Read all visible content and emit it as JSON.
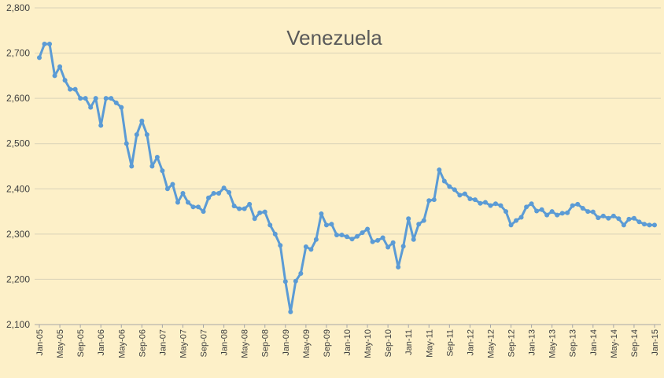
{
  "chart_data": {
    "type": "line",
    "title": "Venezuela",
    "xlabel": "",
    "ylabel": "",
    "ylim": [
      2100,
      2800
    ],
    "yticks": [
      "2,100",
      "2,200",
      "2,300",
      "2,400",
      "2,500",
      "2,600",
      "2,700",
      "2,800"
    ],
    "grid": true,
    "legend": "none",
    "x_start": "Jan-05",
    "x_end": "Jan-15",
    "x_tick_labels": [
      "Jan-05",
      "May-05",
      "Sep-05",
      "Jan-06",
      "May-06",
      "Sep-06",
      "Jan-07",
      "May-07",
      "Sep-07",
      "Jan-08",
      "May-08",
      "Sep-08",
      "Jan-09",
      "May-09",
      "Sep-09",
      "Jan-10",
      "May-10",
      "Sep-10",
      "Jan-11",
      "May-11",
      "Sep-11",
      "Jan-12",
      "May-12",
      "Sep-12",
      "Jan-13",
      "May-13",
      "Sep-13",
      "Jan-14",
      "May-14",
      "Sep-14",
      "Jan-15"
    ],
    "line_color": "#5b9bd5",
    "series": [
      {
        "values": [
          2690,
          2720,
          2720,
          2650,
          2670,
          2640,
          2620,
          2620,
          2600,
          2600,
          2580,
          2600,
          2540,
          2600,
          2600,
          2590,
          2580,
          2500,
          2450,
          2520,
          2550,
          2520,
          2450,
          2470,
          2440,
          2400,
          2410,
          2370,
          2390,
          2370,
          2360,
          2360,
          2350,
          2380,
          2390,
          2390,
          2402,
          2392,
          2362,
          2356,
          2356,
          2366,
          2334,
          2347,
          2349,
          2320,
          2300,
          2275,
          2195,
          2128,
          2196,
          2213,
          2272,
          2266,
          2288,
          2345,
          2320,
          2322,
          2298,
          2298,
          2294,
          2289,
          2295,
          2303,
          2311,
          2283,
          2286,
          2292,
          2271,
          2281,
          2227,
          2273,
          2334,
          2288,
          2322,
          2330,
          2374,
          2376,
          2442,
          2417,
          2405,
          2398,
          2386,
          2389,
          2378,
          2376,
          2368,
          2370,
          2363,
          2367,
          2363,
          2350,
          2320,
          2330,
          2337,
          2360,
          2367,
          2351,
          2354,
          2342,
          2350,
          2342,
          2346,
          2347,
          2363,
          2366,
          2357,
          2350,
          2349,
          2336,
          2340,
          2335,
          2340,
          2334,
          2320,
          2333,
          2335,
          2327,
          2322,
          2320,
          2320
        ]
      }
    ]
  }
}
